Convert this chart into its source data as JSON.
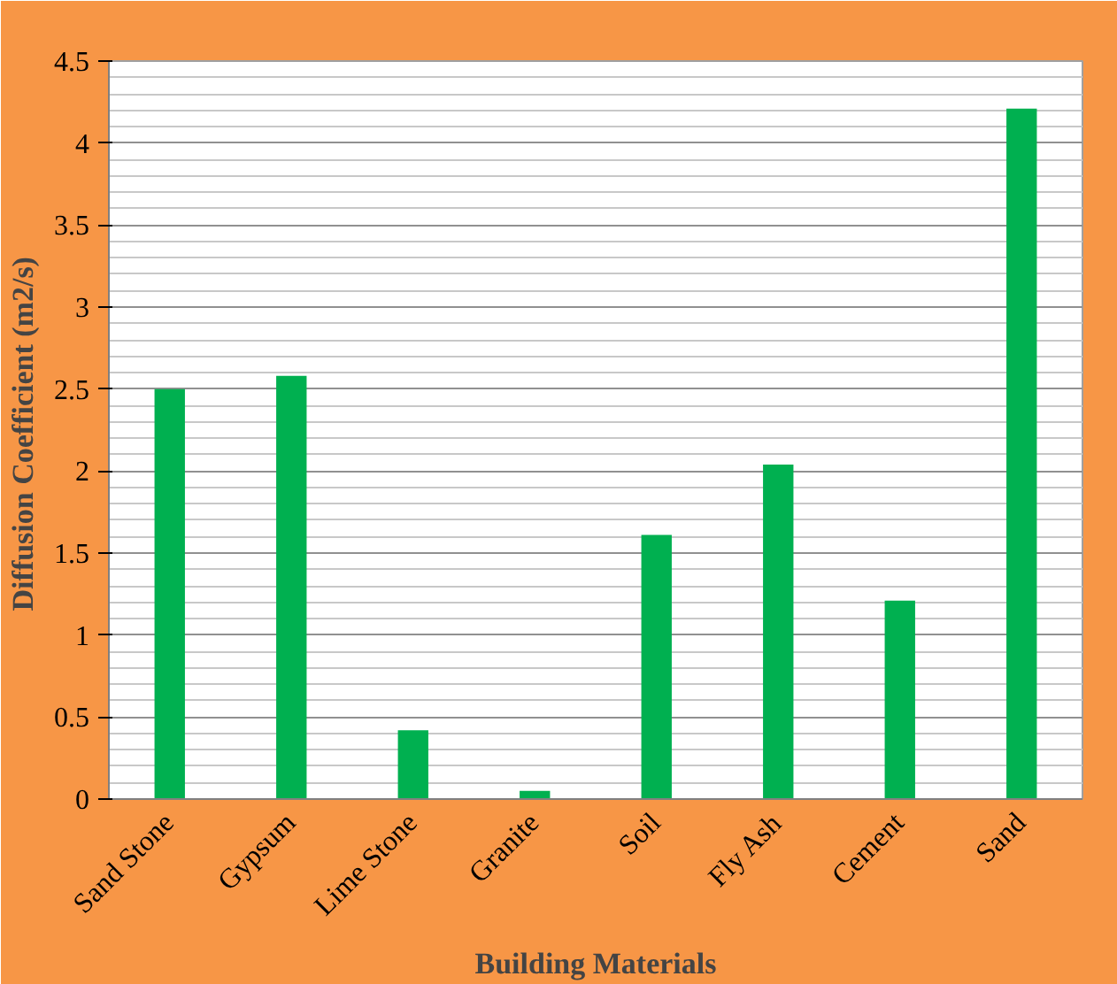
{
  "chart_data": {
    "type": "bar",
    "xlabel": "Building Materials",
    "ylabel": "Diffusion  Coefficient (m2/s)",
    "categories": [
      "Sand Stone",
      "Gypsum",
      "Lime Stone",
      "Granite",
      "Soil",
      "Fly Ash",
      "Cement",
      "Sand"
    ],
    "values": [
      2.5,
      2.58,
      0.42,
      0.05,
      1.61,
      2.04,
      1.21,
      4.21
    ],
    "color": "#00b050",
    "ylim": [
      0,
      4.5
    ],
    "yticks": [
      0,
      0.5,
      1,
      1.5,
      2,
      2.5,
      3,
      3.5,
      4,
      4.5
    ],
    "grid": "y"
  }
}
